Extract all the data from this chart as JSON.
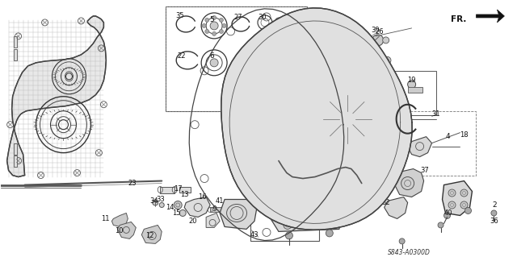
{
  "bg_color": "#ffffff",
  "diagram_code": "S843-A0300D",
  "fr_label": "FR.",
  "figw": 6.4,
  "figh": 3.19,
  "dpi": 100,
  "image_b64": ""
}
